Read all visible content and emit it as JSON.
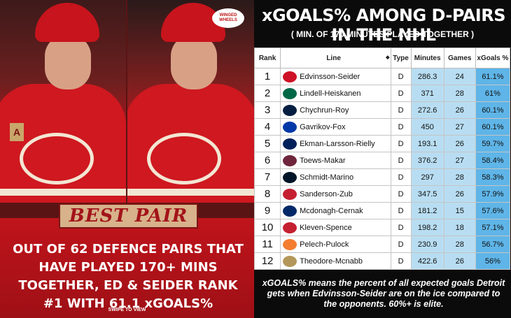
{
  "left_panel": {
    "badge_text": "WINGED WHEELS",
    "best_pair_label": "BEST PAIR",
    "headline": "OUT OF 62 DEFENCE PAIRS THAT HAVE PLAYED 170+ MINS TOGETHER, ED & SEIDER RANK #1 WITH 61.1 xGOALS%",
    "swipe_text": "SWIPE TO VIEW",
    "captain_letter": "A"
  },
  "table_panel": {
    "title": "xGOALS% AMONG D-PAIRS IN THE NHL",
    "subtitle": "( MIN. OF 170 MINUTES PLAYED TOGETHER )",
    "columns": [
      "Rank",
      "Line",
      "Type",
      "Minutes",
      "Games",
      "xGoals %"
    ],
    "sort_icon": "◆",
    "rows": [
      {
        "rank": "1",
        "line": "Edvinsson-Seider",
        "type": "D",
        "minutes": "286.3",
        "games": "24",
        "xgoals": "61.1%",
        "logo_icon": "red-wings-logo-icon",
        "logo_color": "#ce1126"
      },
      {
        "rank": "2",
        "line": "Lindell-Heiskanen",
        "type": "D",
        "minutes": "371",
        "games": "28",
        "xgoals": "61%",
        "logo_icon": "stars-logo-icon",
        "logo_color": "#006847"
      },
      {
        "rank": "3",
        "line": "Chychrun-Roy",
        "type": "D",
        "minutes": "272.6",
        "games": "26",
        "xgoals": "60.1%",
        "logo_icon": "capitals-logo-icon",
        "logo_color": "#041e42"
      },
      {
        "rank": "4",
        "line": "Gavrikov-Fox",
        "type": "D",
        "minutes": "450",
        "games": "27",
        "xgoals": "60.1%",
        "logo_icon": "rangers-logo-icon",
        "logo_color": "#0038a8"
      },
      {
        "rank": "5",
        "line": "Ekman-Larsson-Rielly",
        "type": "D",
        "minutes": "193.1",
        "games": "26",
        "xgoals": "59.7%",
        "logo_icon": "maple-leafs-logo-icon",
        "logo_color": "#00205b"
      },
      {
        "rank": "6",
        "line": "Toews-Makar",
        "type": "D",
        "minutes": "376.2",
        "games": "27",
        "xgoals": "58.4%",
        "logo_icon": "avalanche-logo-icon",
        "logo_color": "#6f263d"
      },
      {
        "rank": "7",
        "line": "Schmidt-Marino",
        "type": "D",
        "minutes": "297",
        "games": "28",
        "xgoals": "58.3%",
        "logo_icon": "kraken-logo-icon",
        "logo_color": "#001628"
      },
      {
        "rank": "8",
        "line": "Sanderson-Zub",
        "type": "D",
        "minutes": "347.5",
        "games": "26",
        "xgoals": "57.9%",
        "logo_icon": "senators-logo-icon",
        "logo_color": "#c52032"
      },
      {
        "rank": "9",
        "line": "Mcdonagh-Cernak",
        "type": "D",
        "minutes": "181.2",
        "games": "15",
        "xgoals": "57.6%",
        "logo_icon": "lightning-logo-icon",
        "logo_color": "#002868"
      },
      {
        "rank": "10",
        "line": "Kleven-Spence",
        "type": "D",
        "minutes": "198.2",
        "games": "18",
        "xgoals": "57.1%",
        "logo_icon": "senators-logo-icon",
        "logo_color": "#c52032"
      },
      {
        "rank": "11",
        "line": "Pelech-Pulock",
        "type": "D",
        "minutes": "230.9",
        "games": "28",
        "xgoals": "56.7%",
        "logo_icon": "islanders-logo-icon",
        "logo_color": "#f47d30"
      },
      {
        "rank": "12",
        "line": "Theodore-Mcnabb",
        "type": "D",
        "minutes": "422.6",
        "games": "26",
        "xgoals": "56%",
        "logo_icon": "golden-knights-logo-icon",
        "logo_color": "#b4975a"
      }
    ],
    "footer": "xGOALS% means the percent of all expected goals Detroit gets when Edvinsson-Seider are on the ice compared to the opponents. 60%+ is elite."
  },
  "colors": {
    "red_wings_red": "#ce1126",
    "minutes_games_fill": "#b8ddf2",
    "xgoals_fill": "#5fb5e8",
    "best_pair_bg": "#d7b28a"
  }
}
